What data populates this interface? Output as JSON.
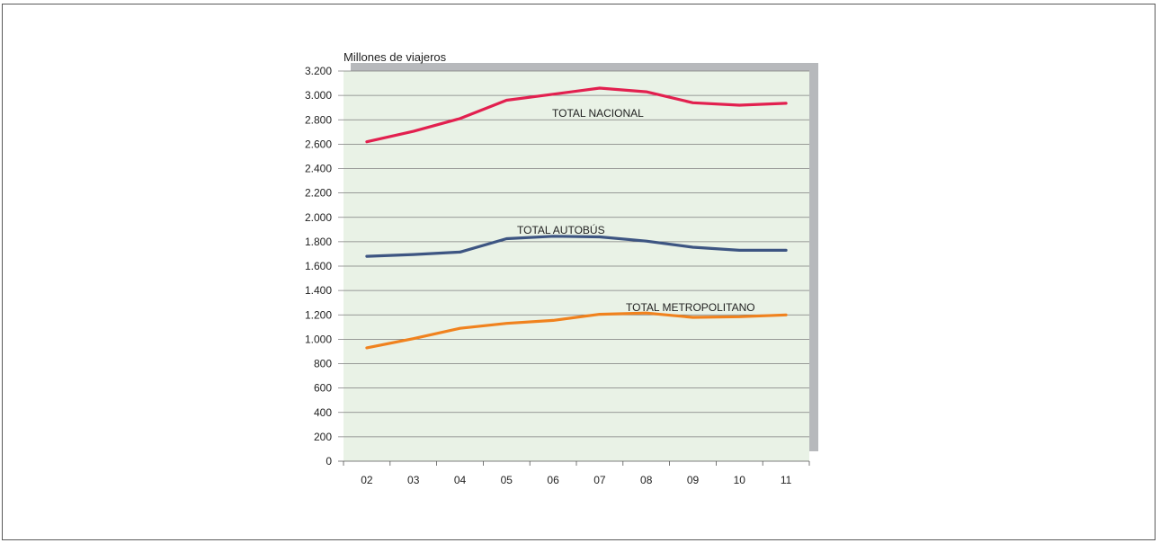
{
  "chart_data": {
    "type": "line",
    "title": "",
    "ylabel": "Millones de viajeros",
    "xlabel": "",
    "categories": [
      "02",
      "03",
      "04",
      "05",
      "06",
      "07",
      "08",
      "09",
      "10",
      "11"
    ],
    "y_ticks": [
      0,
      200,
      400,
      600,
      800,
      1000,
      1200,
      1400,
      1600,
      1800,
      2000,
      2200,
      2400,
      2600,
      2800,
      3000,
      3200
    ],
    "y_tick_labels": [
      "0",
      "200",
      "400",
      "600",
      "800",
      "1.000",
      "1.200",
      "1.400",
      "1.600",
      "1.800",
      "2.000",
      "2.200",
      "2.400",
      "2.600",
      "2.800",
      "3.000",
      "3.200"
    ],
    "ylim": [
      0,
      3200
    ],
    "grid": true,
    "legend": "inline labels",
    "background_color": "#e9f2e6",
    "series": [
      {
        "name": "TOTAL NACIONAL",
        "color": "#e2204f",
        "values": [
          2620,
          2705,
          2810,
          2960,
          3010,
          3060,
          3030,
          2940,
          2920,
          2935
        ]
      },
      {
        "name": "TOTAL AUTOBÚS",
        "color": "#3d5582",
        "values": [
          1680,
          1695,
          1715,
          1825,
          1845,
          1840,
          1805,
          1755,
          1730,
          1730
        ]
      },
      {
        "name": "TOTAL METROPOLITANO",
        "color": "#f0821e",
        "values": [
          930,
          1005,
          1090,
          1130,
          1155,
          1205,
          1215,
          1180,
          1185,
          1200
        ]
      }
    ]
  }
}
